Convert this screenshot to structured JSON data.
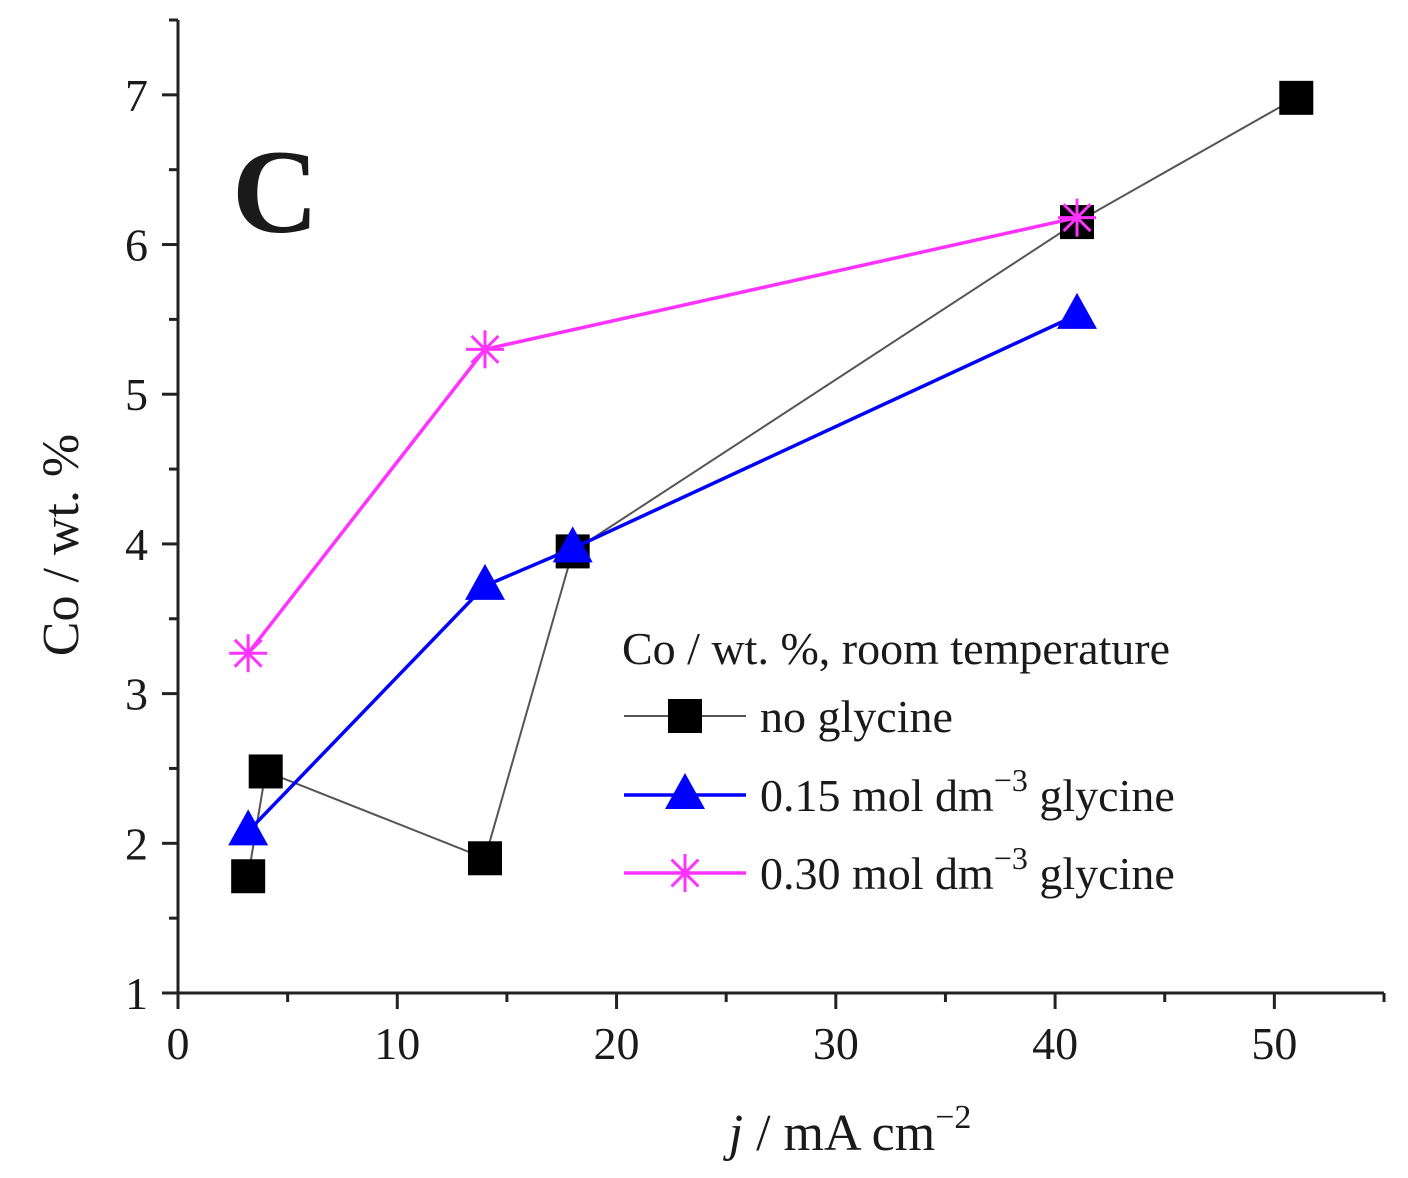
{
  "chart_data": {
    "type": "line",
    "panel_label": "C",
    "xlabel": {
      "italic": "j",
      "rest": " / mA cm",
      "sup": "−2"
    },
    "ylabel": "Co / wt. %",
    "xlim": [
      0,
      55
    ],
    "ylim": [
      1,
      7.5
    ],
    "xticks": [
      0,
      10,
      20,
      30,
      40,
      50
    ],
    "yticks": [
      1,
      2,
      3,
      4,
      5,
      6,
      7
    ],
    "grid": false,
    "legend": {
      "position": "bottom-right",
      "title": "Co / wt. %, room temperature"
    },
    "series": [
      {
        "id": "no-glycine",
        "name": "no glycine",
        "name_prefix": "no glycine",
        "name_sup": "",
        "name_suffix": "",
        "color": "#000000",
        "line_color": "#555555",
        "marker": "square",
        "x": [
          3.2,
          4,
          14,
          18,
          41,
          51
        ],
        "y": [
          1.78,
          2.48,
          1.9,
          3.95,
          6.15,
          6.98
        ]
      },
      {
        "id": "glycine-015",
        "name": "0.15 mol dm−3 glycine",
        "name_prefix": "0.15 mol dm",
        "name_sup": "−3",
        "name_suffix": " glycine",
        "color": "#0000ff",
        "line_color": "#0000ff",
        "marker": "triangle",
        "x": [
          3.2,
          14,
          18,
          41
        ],
        "y": [
          2.08,
          3.72,
          3.97,
          5.53
        ]
      },
      {
        "id": "glycine-030",
        "name": "0.30 mol dm−3 glycine",
        "name_prefix": "0.30 mol dm",
        "name_sup": "−3",
        "name_suffix": " glycine",
        "color": "#ff33ff",
        "line_color": "#ff33ff",
        "marker": "asterisk",
        "x": [
          3.2,
          14,
          41
        ],
        "y": [
          3.27,
          5.3,
          6.18
        ]
      }
    ]
  }
}
